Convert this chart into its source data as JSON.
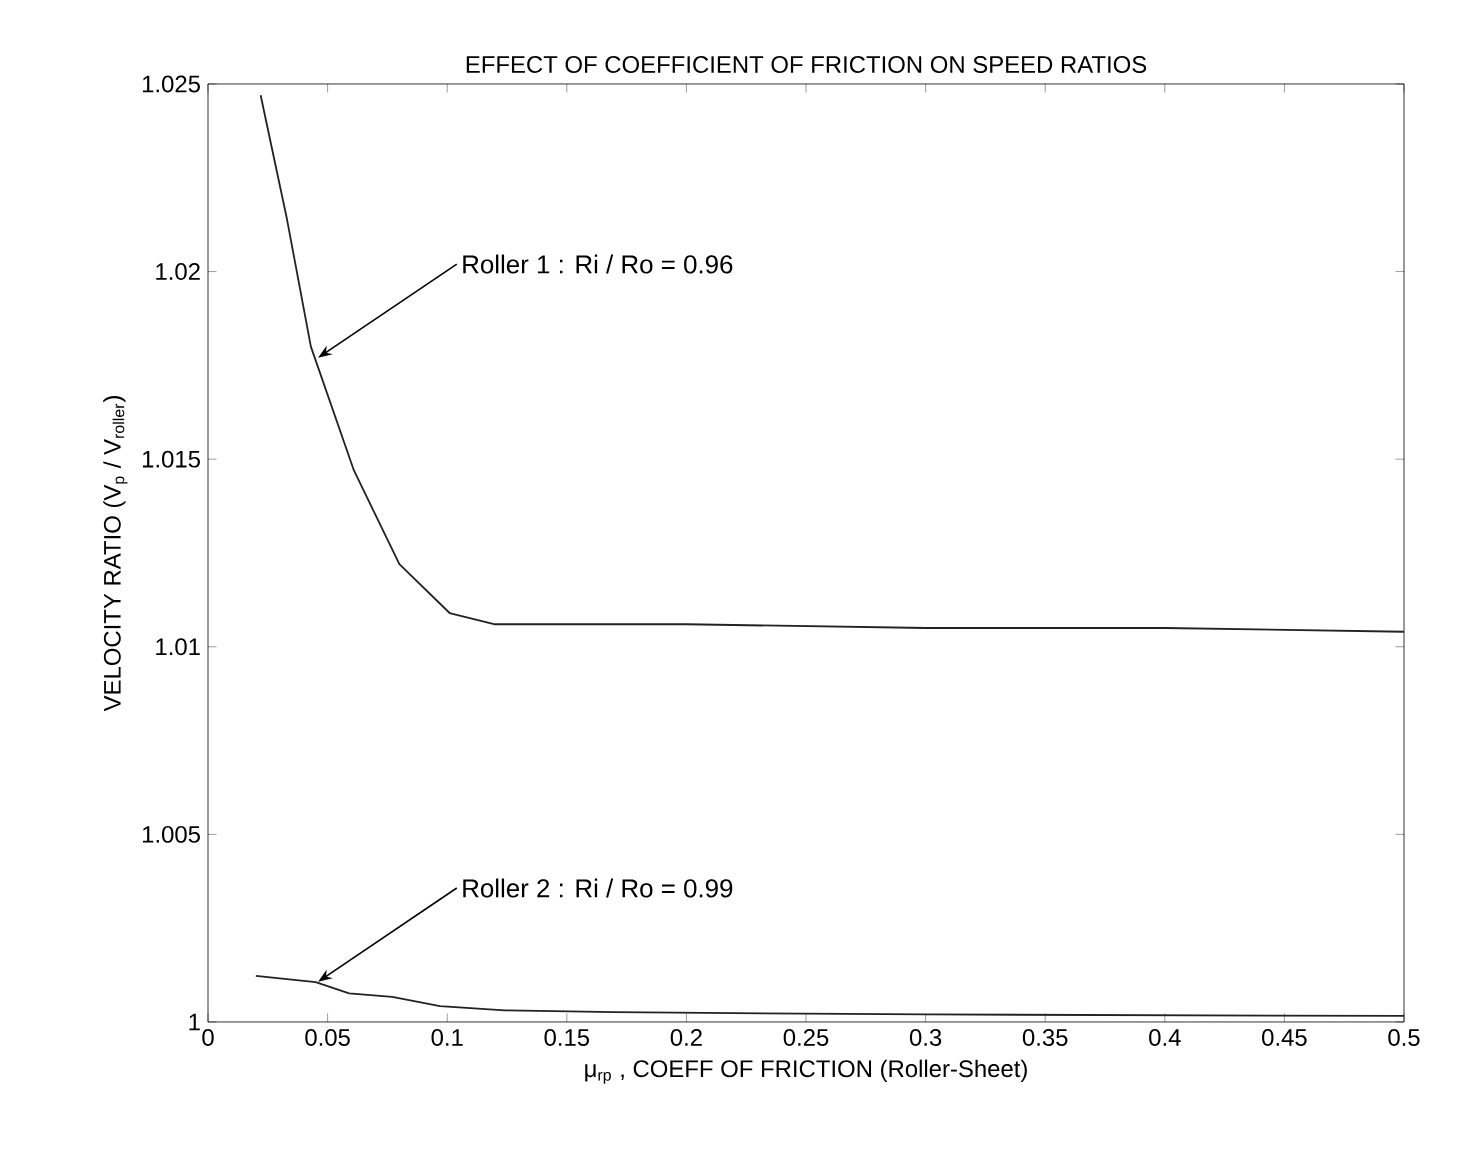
{
  "chart_data": {
    "type": "line",
    "title": "EFFECT OF COEFFICIENT OF FRICTION ON SPEED RATIOS",
    "xlabel": "μ$_{rp}$ , COEFF OF FRICTION (Roller-Sheet)",
    "ylabel": "VELOCITY RATIO (V$_{p}$ / V$_{roller}$)",
    "series": [
      {
        "color": "#222222",
        "x": [
          0.022,
          0.033,
          0.043,
          0.061,
          0.08,
          0.101,
          0.12,
          0.2,
          0.3,
          0.4,
          0.5
        ],
        "values": [
          1.0247,
          1.0214,
          1.018,
          1.0147,
          1.0122,
          1.0109,
          1.0106,
          1.0106,
          1.0105,
          1.0105,
          1.0104
        ]
      },
      {
        "color": "#222222",
        "x": [
          0.02,
          0.045,
          0.059,
          0.077,
          0.097,
          0.124,
          0.17,
          0.3,
          0.5
        ],
        "values": [
          1.00123,
          1.00106,
          1.00076,
          1.00067,
          1.00042,
          1.00031,
          1.00026,
          1.0002,
          1.00016
        ]
      }
    ],
    "xlim": [
      0,
      0.5
    ],
    "ylim": [
      1,
      1.025
    ],
    "xticks": [
      0,
      0.05,
      0.1,
      0.15,
      0.2,
      0.25,
      0.3,
      0.35,
      0.4,
      0.45,
      0.5
    ],
    "yticks": [
      1,
      1.005,
      1.01,
      1.015,
      1.02,
      1.025
    ],
    "annotations": [
      {
        "text": "Roller 1 : Ri / Ro = 0.96",
        "x": 0.046,
        "y": 1.0177
      },
      {
        "text": "Roller 2 : Ri / Ro = 0.99",
        "x": 0.046,
        "y": 1.00107
      }
    ]
  }
}
